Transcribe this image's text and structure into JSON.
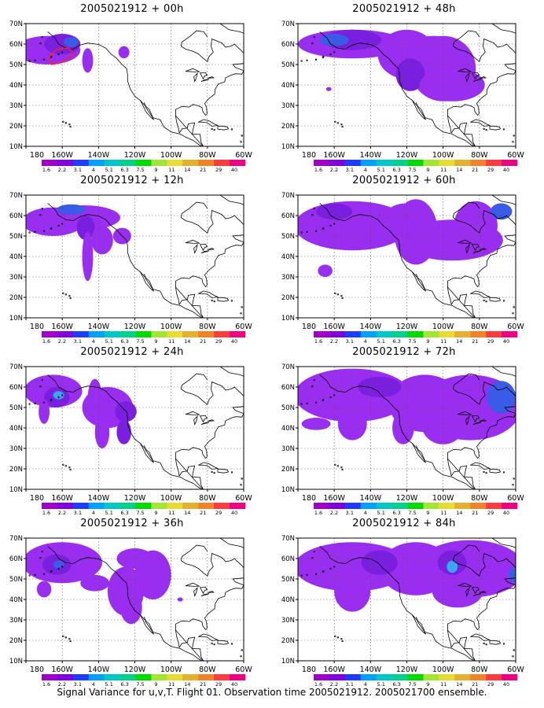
{
  "panels": [
    {
      "title": "2005021912 + 00h"
    },
    {
      "title": "2005021912 + 48h"
    },
    {
      "title": "2005021912 + 12h"
    },
    {
      "title": "2005021912 + 60h"
    },
    {
      "title": "2005021912 + 24h"
    },
    {
      "title": "2005021912 + 72h"
    },
    {
      "title": "2005021912 + 36h"
    },
    {
      "title": "2005021912 + 84h"
    }
  ],
  "axes": {
    "lat_labels": [
      "70N",
      "60N",
      "50N",
      "40N",
      "30N",
      "20N",
      "10N"
    ],
    "lon_labels": [
      "180",
      "160W",
      "140W",
      "120W",
      "100W",
      "80W",
      "60W"
    ]
  },
  "colorbar": {
    "labels": [
      "1.6",
      "2.2",
      "3.1",
      "4",
      "5.1",
      "6.3",
      "7.5",
      "9",
      "11",
      "14",
      "21",
      "29",
      "40"
    ],
    "colors": [
      "#a000c8",
      "#8200dc",
      "#1e3cff",
      "#00a0ff",
      "#00c8c8",
      "#00d28c",
      "#00dc00",
      "#a0e632",
      "#e6dc32",
      "#e6af2d",
      "#f08228",
      "#fa3c3c",
      "#f00082"
    ]
  },
  "fill_colors": {
    "low": "#9a2ef0",
    "mid": "#7a1fe0",
    "high": "#3a5ae8",
    "peak": "#38a8f0"
  },
  "footer": "Signal Variance for u,v,T. Flight 01. Observation time 2005021912. 2005021700 ensemble."
}
